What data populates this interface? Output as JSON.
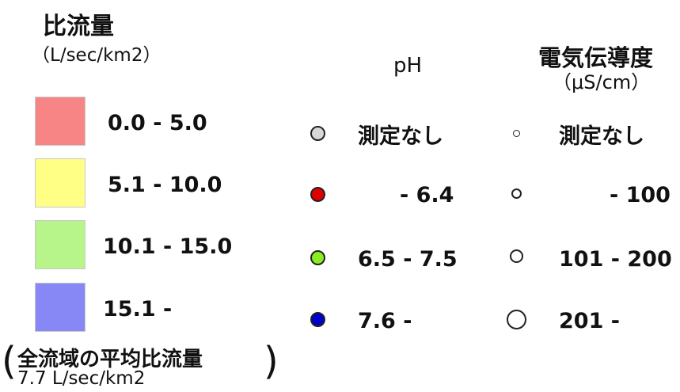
{
  "flow": {
    "title": "比流量",
    "unit": "（L/sec/km2）",
    "items": [
      {
        "label": "0.0 -  5.0",
        "color": "#f78585"
      },
      {
        "label": "5.1 - 10.0",
        "color": "#ffff85"
      },
      {
        "label": "10.1 - 15.0",
        "color": "#b7f58a"
      },
      {
        "label": "15.1 -",
        "color": "#8787f5"
      }
    ],
    "average_title": "全流域の平均比流量",
    "average_value": "7.7 L/sec/km2"
  },
  "ph": {
    "title": "pH",
    "items": [
      {
        "label": "測定なし",
        "color": "#d8d8d8"
      },
      {
        "label": "- 6.4",
        "color": "#e00000"
      },
      {
        "label": "6.5 - 7.5",
        "color": "#88ee22"
      },
      {
        "label": "7.6 -",
        "color": "#0000cc"
      }
    ]
  },
  "conductivity": {
    "title": "電気伝導度",
    "unit": "（μS/cm）",
    "items": [
      {
        "label": "測定なし"
      },
      {
        "label": "- 100"
      },
      {
        "label": "101 - 200"
      },
      {
        "label": "201 -"
      }
    ]
  }
}
